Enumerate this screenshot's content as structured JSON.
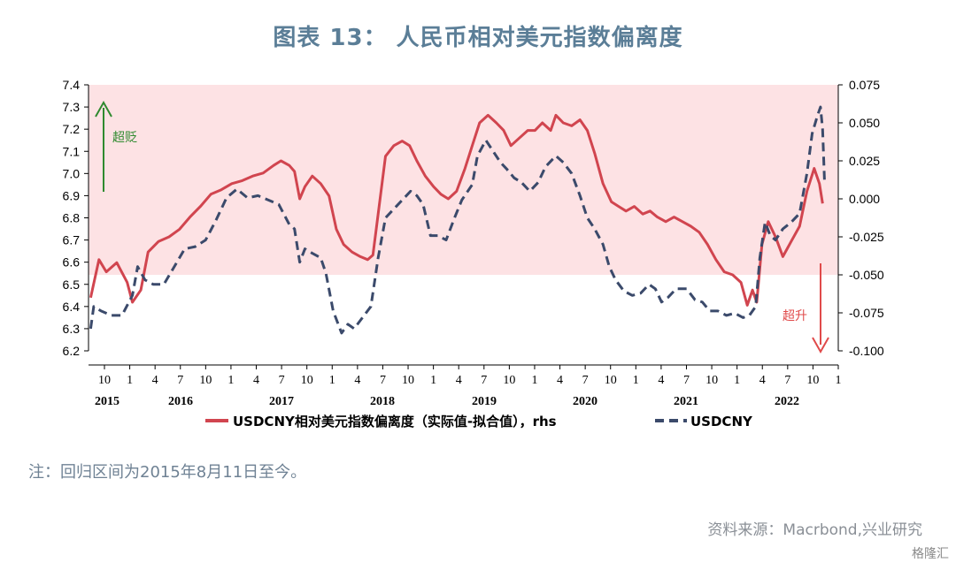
{
  "title": "图表 13： 人民币相对美元指数偏离度",
  "note": "注：回归区间为2015年8月11日至今。",
  "source": "资料来源：Macrbond,兴业研究",
  "watermark": "格隆汇",
  "colors": {
    "primary_line": "#d1454f",
    "secondary_line": "#3b4a6b",
    "band": "#fde2e4",
    "up_arrow": "#2f8a2f",
    "down_arrow": "#e04a4a"
  },
  "chart_data": {
    "type": "line",
    "y_left": {
      "lim": [
        6.2,
        7.4
      ],
      "ticks": [
        "6.2",
        "6.3",
        "6.4",
        "6.5",
        "6.6",
        "6.7",
        "6.8",
        "6.9",
        "7.0",
        "7.1",
        "7.2",
        "7.3",
        "7.4"
      ]
    },
    "y_right": {
      "lim": [
        -0.1,
        0.075
      ],
      "ticks": [
        "-0.100",
        "-0.075",
        "-0.050",
        "-0.025",
        "0.000",
        "0.025",
        "0.050",
        "0.075"
      ]
    },
    "x_month_ticks": [
      "10",
      "1",
      "4",
      "7",
      "10",
      "1",
      "4",
      "7",
      "10",
      "1",
      "4",
      "7",
      "10",
      "1",
      "4",
      "7",
      "10",
      "1",
      "4",
      "7",
      "10",
      "1",
      "4",
      "7",
      "10",
      "1",
      "4",
      "7",
      "10",
      "1"
    ],
    "x_year_labels": [
      "2015",
      "2016",
      "2017",
      "2018",
      "2019",
      "2020",
      "2021",
      "2022"
    ],
    "band_above": -0.05,
    "annotations": {
      "up": "超贬",
      "down": "超升"
    },
    "series": [
      {
        "name": "USDCNY相对美元指数偏离度（实际值-拟合值），rhs",
        "axis": "right",
        "style": "solid",
        "points": [
          [
            2015.6,
            -0.065
          ],
          [
            2015.68,
            -0.04
          ],
          [
            2015.75,
            -0.048
          ],
          [
            2015.85,
            -0.042
          ],
          [
            2015.95,
            -0.055
          ],
          [
            2016.0,
            -0.068
          ],
          [
            2016.08,
            -0.06
          ],
          [
            2016.15,
            -0.035
          ],
          [
            2016.25,
            -0.028
          ],
          [
            2016.35,
            -0.025
          ],
          [
            2016.45,
            -0.02
          ],
          [
            2016.55,
            -0.012
          ],
          [
            2016.65,
            -0.005
          ],
          [
            2016.75,
            0.003
          ],
          [
            2016.85,
            0.006
          ],
          [
            2016.95,
            0.01
          ],
          [
            2017.05,
            0.012
          ],
          [
            2017.15,
            0.015
          ],
          [
            2017.25,
            0.017
          ],
          [
            2017.35,
            0.022
          ],
          [
            2017.42,
            0.025
          ],
          [
            2017.5,
            0.022
          ],
          [
            2017.55,
            0.018
          ],
          [
            2017.6,
            0.0
          ],
          [
            2017.65,
            0.008
          ],
          [
            2017.72,
            0.015
          ],
          [
            2017.8,
            0.01
          ],
          [
            2017.88,
            0.002
          ],
          [
            2017.95,
            -0.02
          ],
          [
            2018.02,
            -0.03
          ],
          [
            2018.1,
            -0.035
          ],
          [
            2018.18,
            -0.038
          ],
          [
            2018.25,
            -0.04
          ],
          [
            2018.3,
            -0.037
          ],
          [
            2018.35,
            -0.01
          ],
          [
            2018.42,
            0.028
          ],
          [
            2018.5,
            0.035
          ],
          [
            2018.58,
            0.038
          ],
          [
            2018.65,
            0.035
          ],
          [
            2018.72,
            0.025
          ],
          [
            2018.8,
            0.015
          ],
          [
            2018.88,
            0.008
          ],
          [
            2018.95,
            0.003
          ],
          [
            2019.02,
            0.0
          ],
          [
            2019.1,
            0.005
          ],
          [
            2019.18,
            0.02
          ],
          [
            2019.25,
            0.035
          ],
          [
            2019.32,
            0.05
          ],
          [
            2019.4,
            0.055
          ],
          [
            2019.48,
            0.05
          ],
          [
            2019.55,
            0.045
          ],
          [
            2019.62,
            0.035
          ],
          [
            2019.7,
            0.04
          ],
          [
            2019.78,
            0.045
          ],
          [
            2019.85,
            0.045
          ],
          [
            2019.92,
            0.05
          ],
          [
            2020.0,
            0.045
          ],
          [
            2020.05,
            0.055
          ],
          [
            2020.12,
            0.05
          ],
          [
            2020.2,
            0.048
          ],
          [
            2020.28,
            0.052
          ],
          [
            2020.35,
            0.045
          ],
          [
            2020.42,
            0.03
          ],
          [
            2020.5,
            0.01
          ],
          [
            2020.58,
            -0.002
          ],
          [
            2020.65,
            -0.005
          ],
          [
            2020.72,
            -0.008
          ],
          [
            2020.8,
            -0.005
          ],
          [
            2020.88,
            -0.01
          ],
          [
            2020.95,
            -0.008
          ],
          [
            2021.02,
            -0.012
          ],
          [
            2021.1,
            -0.015
          ],
          [
            2021.18,
            -0.012
          ],
          [
            2021.26,
            -0.015
          ],
          [
            2021.34,
            -0.018
          ],
          [
            2021.42,
            -0.022
          ],
          [
            2021.5,
            -0.03
          ],
          [
            2021.58,
            -0.04
          ],
          [
            2021.66,
            -0.048
          ],
          [
            2021.74,
            -0.05
          ],
          [
            2021.82,
            -0.055
          ],
          [
            2021.88,
            -0.07
          ],
          [
            2021.93,
            -0.06
          ],
          [
            2021.97,
            -0.068
          ],
          [
            2022.02,
            -0.03
          ],
          [
            2022.08,
            -0.015
          ],
          [
            2022.15,
            -0.025
          ],
          [
            2022.22,
            -0.038
          ],
          [
            2022.3,
            -0.028
          ],
          [
            2022.38,
            -0.018
          ],
          [
            2022.45,
            0.005
          ],
          [
            2022.52,
            0.02
          ],
          [
            2022.57,
            0.01
          ],
          [
            2022.6,
            -0.003
          ]
        ]
      },
      {
        "name": "USDCNY",
        "axis": "left",
        "style": "dashed",
        "points": [
          [
            2015.6,
            6.3
          ],
          [
            2015.63,
            6.4
          ],
          [
            2015.7,
            6.38
          ],
          [
            2015.8,
            6.36
          ],
          [
            2015.9,
            6.36
          ],
          [
            2016.0,
            6.45
          ],
          [
            2016.05,
            6.58
          ],
          [
            2016.12,
            6.52
          ],
          [
            2016.2,
            6.5
          ],
          [
            2016.3,
            6.5
          ],
          [
            2016.4,
            6.58
          ],
          [
            2016.5,
            6.66
          ],
          [
            2016.6,
            6.67
          ],
          [
            2016.7,
            6.7
          ],
          [
            2016.8,
            6.79
          ],
          [
            2016.9,
            6.89
          ],
          [
            2017.0,
            6.93
          ],
          [
            2017.1,
            6.89
          ],
          [
            2017.2,
            6.9
          ],
          [
            2017.3,
            6.88
          ],
          [
            2017.4,
            6.86
          ],
          [
            2017.5,
            6.77
          ],
          [
            2017.55,
            6.75
          ],
          [
            2017.6,
            6.6
          ],
          [
            2017.65,
            6.66
          ],
          [
            2017.72,
            6.64
          ],
          [
            2017.8,
            6.62
          ],
          [
            2017.85,
            6.55
          ],
          [
            2017.92,
            6.38
          ],
          [
            2018.0,
            6.28
          ],
          [
            2018.06,
            6.32
          ],
          [
            2018.12,
            6.3
          ],
          [
            2018.2,
            6.35
          ],
          [
            2018.28,
            6.4
          ],
          [
            2018.35,
            6.62
          ],
          [
            2018.42,
            6.8
          ],
          [
            2018.5,
            6.84
          ],
          [
            2018.58,
            6.88
          ],
          [
            2018.66,
            6.92
          ],
          [
            2018.72,
            6.9
          ],
          [
            2018.78,
            6.86
          ],
          [
            2018.85,
            6.72
          ],
          [
            2018.92,
            6.72
          ],
          [
            2019.0,
            6.7
          ],
          [
            2019.08,
            6.8
          ],
          [
            2019.15,
            6.88
          ],
          [
            2019.25,
            6.95
          ],
          [
            2019.3,
            7.08
          ],
          [
            2019.38,
            7.15
          ],
          [
            2019.45,
            7.1
          ],
          [
            2019.52,
            7.05
          ],
          [
            2019.58,
            7.02
          ],
          [
            2019.65,
            6.98
          ],
          [
            2019.72,
            6.96
          ],
          [
            2019.8,
            6.92
          ],
          [
            2019.88,
            6.96
          ],
          [
            2019.95,
            7.03
          ],
          [
            2020.05,
            7.08
          ],
          [
            2020.12,
            7.05
          ],
          [
            2020.2,
            7.0
          ],
          [
            2020.28,
            6.9
          ],
          [
            2020.35,
            6.8
          ],
          [
            2020.42,
            6.75
          ],
          [
            2020.5,
            6.68
          ],
          [
            2020.56,
            6.58
          ],
          [
            2020.62,
            6.52
          ],
          [
            2020.7,
            6.47
          ],
          [
            2020.78,
            6.45
          ],
          [
            2020.86,
            6.46
          ],
          [
            2020.94,
            6.5
          ],
          [
            2021.0,
            6.48
          ],
          [
            2021.06,
            6.42
          ],
          [
            2021.12,
            6.44
          ],
          [
            2021.2,
            6.48
          ],
          [
            2021.3,
            6.48
          ],
          [
            2021.38,
            6.43
          ],
          [
            2021.45,
            6.42
          ],
          [
            2021.52,
            6.38
          ],
          [
            2021.6,
            6.38
          ],
          [
            2021.68,
            6.36
          ],
          [
            2021.76,
            6.37
          ],
          [
            2021.84,
            6.35
          ],
          [
            2021.9,
            6.36
          ],
          [
            2021.96,
            6.4
          ],
          [
            2022.0,
            6.62
          ],
          [
            2022.05,
            6.78
          ],
          [
            2022.1,
            6.72
          ],
          [
            2022.15,
            6.7
          ],
          [
            2022.22,
            6.75
          ],
          [
            2022.3,
            6.78
          ],
          [
            2022.38,
            6.82
          ],
          [
            2022.45,
            7.0
          ],
          [
            2022.5,
            7.18
          ],
          [
            2022.55,
            7.26
          ],
          [
            2022.58,
            7.3
          ],
          [
            2022.6,
            7.2
          ],
          [
            2022.62,
            6.95
          ]
        ]
      }
    ]
  }
}
